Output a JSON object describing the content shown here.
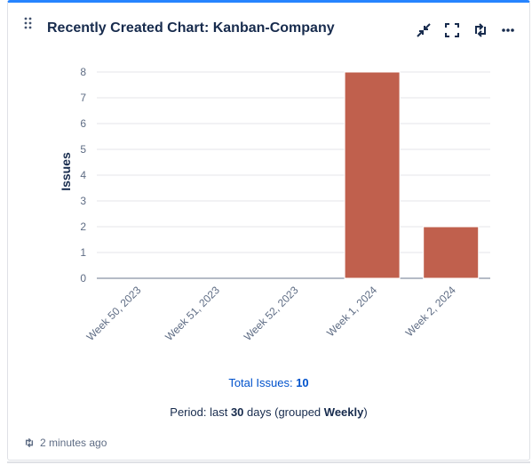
{
  "gadget": {
    "title": "Recently Created Chart: Kanban-Company",
    "accent_color": "#2684ff",
    "icons": [
      "drag-handle-icon",
      "minimize-icon",
      "fullscreen-icon",
      "refresh-icon",
      "more-icon"
    ]
  },
  "chart_data": {
    "type": "bar",
    "categories": [
      "Week 50, 2023",
      "Week 51, 2023",
      "Week 52, 2023",
      "Week 1, 2024",
      "Week 2, 2024"
    ],
    "values": [
      0,
      0,
      0,
      8,
      2
    ],
    "ylabel": "Issues",
    "xlabel": "",
    "ylim": [
      0,
      8
    ],
    "yticks": [
      0,
      1,
      2,
      3,
      4,
      5,
      6,
      7,
      8
    ],
    "grid": true,
    "bar_color": "#c0604d"
  },
  "summary": {
    "total_label": "Total Issues:",
    "total_value": "10",
    "period_prefix": "Period: last",
    "period_days": "30",
    "period_mid": "days (grouped",
    "period_group": "Weekly",
    "period_suffix": ")"
  },
  "footer": {
    "updated_text": "2 minutes ago"
  }
}
